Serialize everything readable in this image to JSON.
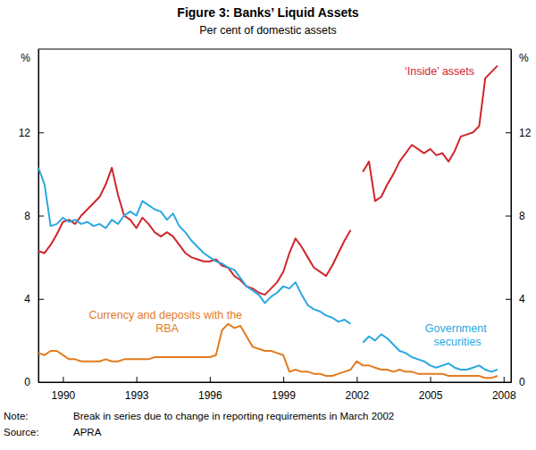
{
  "chart_data": {
    "type": "line",
    "title": "Figure 3: Banks’ Liquid Assets",
    "subtitle": "Per cent of domestic assets",
    "ylabel": "%",
    "y2label": "%",
    "x": [
      1989,
      1989.25,
      1989.5,
      1989.75,
      1990,
      1990.25,
      1990.5,
      1990.75,
      1991,
      1991.25,
      1991.5,
      1991.75,
      1992,
      1992.25,
      1992.5,
      1992.75,
      1993,
      1993.25,
      1993.5,
      1993.75,
      1994,
      1994.25,
      1994.5,
      1994.75,
      1995,
      1995.25,
      1995.5,
      1995.75,
      1996,
      1996.25,
      1996.5,
      1996.75,
      1997,
      1997.25,
      1997.5,
      1997.75,
      1998,
      1998.25,
      1998.5,
      1998.75,
      1999,
      1999.25,
      1999.5,
      1999.75,
      2000,
      2000.25,
      2000.5,
      2000.75,
      2001,
      2001.25,
      2001.5,
      2001.75,
      2002,
      2002.25,
      2002.5,
      2002.75,
      2003,
      2003.25,
      2003.5,
      2003.75,
      2004,
      2004.25,
      2004.5,
      2004.75,
      2005,
      2005.25,
      2005.5,
      2005.75,
      2006,
      2006.25,
      2006.5,
      2006.75,
      2007,
      2007.25,
      2007.5,
      2007.75
    ],
    "series": [
      {
        "name": "‘Inside’ assets",
        "color": "#d0262d",
        "values": [
          6.3,
          6.2,
          6.6,
          7.1,
          7.7,
          7.8,
          7.6,
          8.0,
          8.3,
          8.6,
          8.9,
          9.5,
          10.3,
          9.0,
          8.0,
          7.8,
          7.4,
          7.9,
          7.6,
          7.2,
          7.0,
          7.2,
          7.0,
          6.6,
          6.2,
          6.0,
          5.9,
          5.8,
          5.8,
          5.9,
          5.6,
          5.5,
          5.1,
          4.9,
          4.6,
          4.5,
          4.3,
          4.2,
          4.5,
          4.8,
          5.3,
          6.2,
          6.9,
          6.5,
          6.0,
          5.5,
          5.3,
          5.1,
          5.6,
          6.2,
          6.8,
          7.3,
          null,
          10.1,
          10.6,
          8.7,
          8.9,
          9.5,
          10.0,
          10.6,
          11.0,
          11.4,
          11.2,
          11.0,
          11.2,
          10.9,
          11.0,
          10.6,
          11.1,
          11.8,
          11.9,
          12.0,
          12.3,
          14.6,
          14.9,
          15.2
        ]
      },
      {
        "name": "Government securities",
        "color": "#29a8e0",
        "values": [
          10.3,
          9.5,
          7.5,
          7.6,
          7.9,
          7.7,
          7.8,
          7.6,
          7.7,
          7.5,
          7.6,
          7.4,
          7.8,
          7.6,
          8.0,
          8.2,
          8.0,
          8.7,
          8.5,
          8.3,
          8.2,
          7.8,
          8.1,
          7.5,
          7.2,
          6.8,
          6.5,
          6.2,
          6.0,
          5.8,
          5.7,
          5.5,
          5.4,
          5.0,
          4.6,
          4.4,
          4.2,
          3.8,
          4.1,
          4.3,
          4.6,
          4.5,
          4.8,
          4.2,
          3.7,
          3.5,
          3.4,
          3.2,
          3.1,
          2.9,
          3.0,
          2.8,
          null,
          1.9,
          2.2,
          2.0,
          2.3,
          2.1,
          1.8,
          1.5,
          1.4,
          1.2,
          1.1,
          1.0,
          0.8,
          0.7,
          0.8,
          0.9,
          0.7,
          0.6,
          0.6,
          0.7,
          0.8,
          0.6,
          0.5,
          0.6
        ]
      },
      {
        "name": "Currency and deposits with the RBA",
        "color": "#e27b1f",
        "values": [
          1.4,
          1.3,
          1.5,
          1.5,
          1.3,
          1.1,
          1.1,
          1.0,
          1.0,
          1.0,
          1.0,
          1.1,
          1.0,
          1.0,
          1.1,
          1.1,
          1.1,
          1.1,
          1.1,
          1.2,
          1.2,
          1.2,
          1.2,
          1.2,
          1.2,
          1.2,
          1.2,
          1.2,
          1.2,
          1.3,
          2.5,
          2.8,
          2.6,
          2.7,
          2.2,
          1.7,
          1.6,
          1.5,
          1.5,
          1.4,
          1.3,
          0.5,
          0.6,
          0.5,
          0.5,
          0.4,
          0.4,
          0.3,
          0.3,
          0.4,
          0.5,
          0.6,
          1.0,
          0.8,
          0.8,
          0.7,
          0.6,
          0.6,
          0.5,
          0.6,
          0.5,
          0.5,
          0.4,
          0.4,
          0.4,
          0.4,
          0.4,
          0.3,
          0.3,
          0.3,
          0.3,
          0.3,
          0.3,
          0.2,
          0.2,
          0.3
        ]
      }
    ],
    "xlim": [
      1989,
      2008.3
    ],
    "xticks": [
      1990,
      1993,
      1996,
      1999,
      2002,
      2005,
      2008
    ],
    "ylim": [
      0,
      16
    ],
    "yticks": [
      0,
      4,
      8,
      12
    ],
    "y2lim": [
      0,
      16
    ],
    "y2ticks": [
      0,
      4,
      8,
      12
    ],
    "grid": false,
    "notes": [
      {
        "label": "Note:",
        "text": "Break in series due to change in reporting requirements in March 2002"
      },
      {
        "label": "Source:",
        "text": "APRA"
      }
    ]
  }
}
